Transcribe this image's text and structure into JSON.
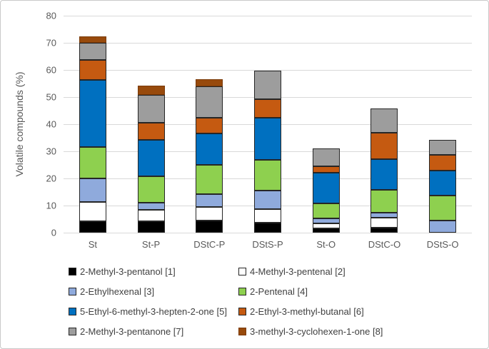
{
  "figure": {
    "y_axis_title": "Volatile compounds (%)"
  },
  "chart_data": {
    "type": "bar",
    "subtype": "stacked",
    "title": "",
    "xlabel": "",
    "ylabel": "Volatile compounds (%)",
    "ylim": [
      0,
      80
    ],
    "ytick_step": 10,
    "ytick_labels": [
      "0",
      "10",
      "20",
      "30",
      "40",
      "50",
      "60",
      "70",
      "80"
    ],
    "grid": "horizontal, light gray",
    "legend_position": "bottom, two columns",
    "categories": [
      "St",
      "St-P",
      "DStC-P",
      "DStS-P",
      "St-O",
      "DStC-O",
      "DStS-O"
    ],
    "series": [
      {
        "name": "2-Methyl-3-pentanol [1]",
        "color": "#000000",
        "border": "#262626",
        "values": [
          4.3,
          4.1,
          4.4,
          3.7,
          1.5,
          1.8,
          0
        ]
      },
      {
        "name": "4-Methyl-3-pentenal [2]",
        "color": "#FFFFFF",
        "border": "#262626",
        "values": [
          7.0,
          4.2,
          5.0,
          4.9,
          2.0,
          3.7,
          0
        ]
      },
      {
        "name": "2-Ethylhexenal [3]",
        "color": "#8FAADC",
        "border": "#262626",
        "values": [
          8.8,
          2.7,
          4.9,
          6.9,
          1.9,
          1.9,
          4.4
        ]
      },
      {
        "name": "2-Pentenal [4]",
        "color": "#8ED04F",
        "border": "#262626",
        "values": [
          11.6,
          9.9,
          10.7,
          11.4,
          5.4,
          8.4,
          9.4
        ]
      },
      {
        "name": "5-Ethyl-6-methyl-3-hepten-2-one [5]",
        "color": "#0070C0",
        "border": "#262626",
        "values": [
          24.5,
          13.3,
          11.6,
          15.6,
          11.2,
          11.2,
          9.0
        ]
      },
      {
        "name": "2-Ethyl-3-methyl-butanal [6]",
        "color": "#C55A11",
        "border": "#262626",
        "values": [
          7.5,
          6.3,
          5.9,
          6.8,
          2.5,
          9.8,
          5.9
        ]
      },
      {
        "name": "2-Methyl-3-pentanone [7]",
        "color": "#9D9D9D",
        "border": "#262626",
        "values": [
          6.3,
          10.2,
          11.4,
          10.4,
          6.5,
          9.1,
          5.5
        ]
      },
      {
        "name": "3-methyl-3-cyclohexen-1-one [8]",
        "color": "#984A0C",
        "border": "#7A3A08",
        "values": [
          2.3,
          3.5,
          2.7,
          0,
          0,
          0,
          0
        ]
      }
    ],
    "totals": [
      72.3,
      54.2,
      56.6,
      59.7,
      31.0,
      45.9,
      34.2
    ],
    "colors": {
      "gridline": "#d9d9d9",
      "axis_text": "#595959",
      "legend_text": "#404040"
    }
  }
}
